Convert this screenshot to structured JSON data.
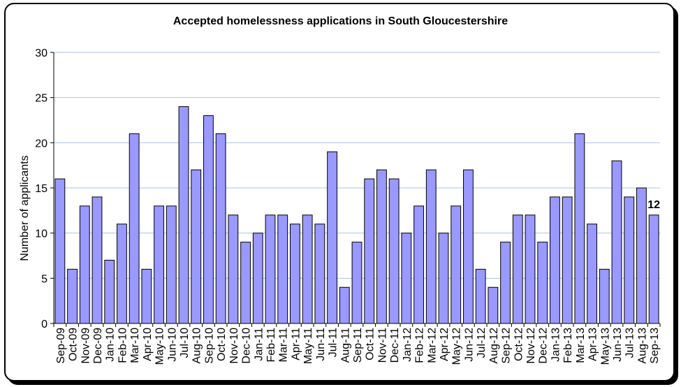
{
  "chart_data": {
    "type": "bar",
    "title": "Accepted homelessness applications in South Gloucestershire",
    "xlabel": "",
    "ylabel": "Number of applicants",
    "ylim": [
      0,
      30
    ],
    "yticks": [
      0,
      5,
      10,
      15,
      20,
      25,
      30
    ],
    "grid": true,
    "legend": "none",
    "bar_color": "#9999ff",
    "bar_edge_color": "#000000",
    "gridline_color": "#a9c4e0",
    "categories": [
      "Sep-09",
      "Oct-09",
      "Nov-09",
      "Dec-09",
      "Jan-10",
      "Feb-10",
      "Mar-10",
      "Apr-10",
      "May-10",
      "Jun-10",
      "Jul-10",
      "Aug-10",
      "Sep-10",
      "Oct-10",
      "Nov-10",
      "Dec-10",
      "Jan-11",
      "Feb-11",
      "Mar-11",
      "Apr-11",
      "May-11",
      "Jun-11",
      "Jul-11",
      "Aug-11",
      "Sep-11",
      "Oct-11",
      "Nov-11",
      "Dec-11",
      "Jan-12",
      "Feb-12",
      "Mar-12",
      "Apr-12",
      "May-12",
      "Jun-12",
      "Jul-12",
      "Aug-12",
      "Sep-12",
      "Oct-12",
      "Nov-12",
      "Dec-12",
      "Jan-13",
      "Feb-13",
      "Mar-13",
      "Apr-13",
      "May-13",
      "Jun-13",
      "Jul-13",
      "Aug-13",
      "Sep-13"
    ],
    "values": [
      16,
      6,
      13,
      14,
      7,
      11,
      21,
      6,
      13,
      13,
      24,
      17,
      23,
      21,
      12,
      9,
      10,
      12,
      12,
      11,
      12,
      11,
      19,
      4,
      9,
      16,
      17,
      16,
      10,
      13,
      17,
      10,
      13,
      17,
      6,
      4,
      9,
      12,
      12,
      9,
      14,
      14,
      21,
      11,
      6,
      18,
      14,
      15,
      12
    ],
    "data_labels": [
      {
        "category": "Sep-13",
        "text": "12"
      }
    ]
  }
}
